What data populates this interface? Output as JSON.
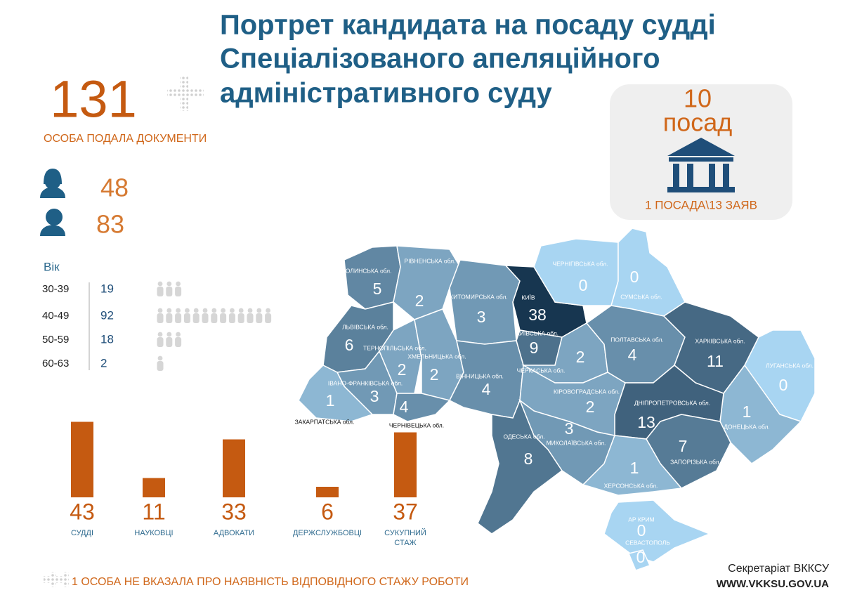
{
  "title_lines": [
    "Портрет кандидата на посаду судді",
    "Спеціалізованого апеляційного",
    "адміністративного суду"
  ],
  "total": {
    "value": 131,
    "label": "ОСОБА ПОДАЛА ДОКУМЕНТИ"
  },
  "gender": {
    "female": 48,
    "male": 83
  },
  "age": {
    "title": "Вік",
    "rows": [
      {
        "range": "30-39",
        "count": 19
      },
      {
        "range": "40-49",
        "count": 92
      },
      {
        "range": "50-59",
        "count": 18
      },
      {
        "range": "60-63",
        "count": 2
      }
    ]
  },
  "positions": {
    "count": 10,
    "unit": "посад",
    "note": "1 ПОСАДА\\13 ЗАЯВ"
  },
  "experience": {
    "type": "bar",
    "color": "#c55a11",
    "categories": [
      "СУДДІ",
      "НАУКОВЦІ",
      "АДВОКАТИ",
      "ДЕРЖСЛУЖБОВЦІ",
      "СУКУПНИЙ СТАЖ"
    ],
    "values": [
      43,
      11,
      33,
      6,
      37
    ]
  },
  "map": {
    "regions": [
      {
        "name": "ВОЛИНСЬКА обл.",
        "value": 5
      },
      {
        "name": "РІВНЕНСЬКА обл.",
        "value": 2
      },
      {
        "name": "ЖИТОМИРСЬКА обл.",
        "value": 3
      },
      {
        "name": "КИЇВ",
        "value": 38
      },
      {
        "name": "КИЇВСЬКА обл.",
        "value": 9
      },
      {
        "name": "ЧЕРНІГІВСЬКА обл.",
        "value": 0
      },
      {
        "name": "СУМСЬКА обл.",
        "value": 0
      },
      {
        "name": "ЛЬВІВСЬКА обл.",
        "value": 6
      },
      {
        "name": "ТЕРНОПІЛЬСЬКА обл.",
        "value": 2
      },
      {
        "name": "ХМЕЛЬНИЦЬКА обл.",
        "value": 2
      },
      {
        "name": "ІВАНО-ФРАНКІВСЬКА обл.",
        "value": 3
      },
      {
        "name": "ЗАКАРПАТСЬКА обл.",
        "value": 1
      },
      {
        "name": "ЧЕРНІВЕЦЬКА обл.",
        "value": 4
      },
      {
        "name": "ВІННИЦЬКА обл.",
        "value": 4
      },
      {
        "name": "ЧЕРКАСЬКА обл.",
        "value": 2
      },
      {
        "name": "ПОЛТАВСЬКА обл.",
        "value": 4
      },
      {
        "name": "ХАРКІВСЬКА обл.",
        "value": 11
      },
      {
        "name": "ЛУГАНСЬКА обл.",
        "value": 0
      },
      {
        "name": "ДОНЕЦЬКА обл.",
        "value": 1
      },
      {
        "name": "ДНІПРОПЕТРОВСЬКА обл.",
        "value": 13
      },
      {
        "name": "КІРОВОГРАДСЬКА обл.",
        "value": 2
      },
      {
        "name": "ЗАПОРІЗЬКА обл.",
        "value": 7
      },
      {
        "name": "МИКОЛАЇВСЬКА обл.",
        "value": 3
      },
      {
        "name": "ОДЕСЬКА обл.",
        "value": 8
      },
      {
        "name": "ХЕРСОНСЬКА обл.",
        "value": 1
      },
      {
        "name": "АР КРИМ",
        "value": 0
      },
      {
        "name": "СЕВАСТОПОЛЬ",
        "value": 0
      }
    ]
  },
  "footer": {
    "note": "1 ОСОБА НЕ ВКАЗАЛА ПРО НАЯВНІСТЬ ВІДПОВІДНОГО СТАЖУ РОБОТИ",
    "org": "Секретаріат ВККСУ",
    "site": "WWW.VKKSU.GOV.UA"
  }
}
